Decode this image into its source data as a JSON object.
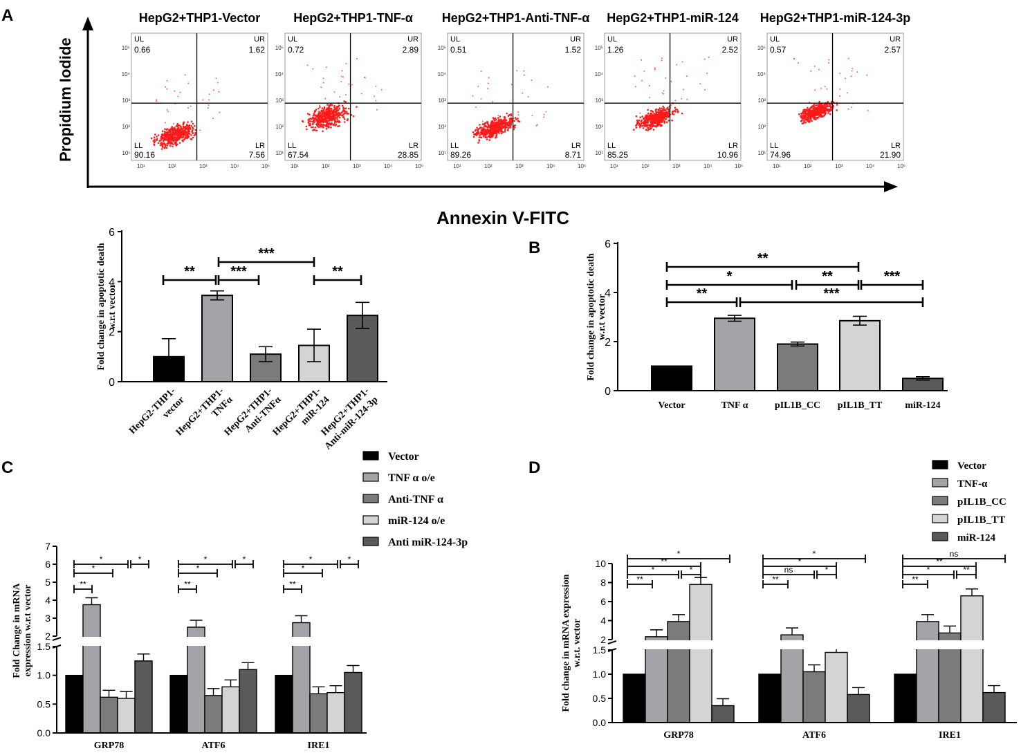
{
  "panel_labels": {
    "a": "A",
    "b": "B",
    "c": "C",
    "d": "D"
  },
  "colors": {
    "black": "#000000",
    "gray1": "#a3a3a8",
    "gray2": "#7b7b7b",
    "light": "#d4d4d4",
    "dark": "#5a5a5a",
    "dot": "#ff1a1a"
  },
  "panelA": {
    "y_axis_title": "Propidium Iodide",
    "x_axis_title": "Annexin V-FITC",
    "plots": [
      {
        "title": "HepG2+THP1-Vector",
        "UL": "0.66",
        "UR": "1.62",
        "LL": "90.16",
        "LR": "7.56"
      },
      {
        "title": "HepG2+THP1-TNF-α",
        "UL": "0.72",
        "UR": "2.89",
        "LL": "67.54",
        "LR": "28.85"
      },
      {
        "title": "HepG2+THP1-Anti-TNF-α",
        "UL": "0.51",
        "UR": "1.52",
        "LL": "89.26",
        "LR": "8.71"
      },
      {
        "title": "HepG2+THP1-miR-124",
        "UL": "1.26",
        "UR": "2.52",
        "LL": "85.25",
        "LR": "10.96"
      },
      {
        "title": "HepG2+THP1-miR-124-3p",
        "UL": "0.57",
        "UR": "2.57",
        "LL": "74.96",
        "LR": "21.90"
      }
    ],
    "quad_names": {
      "ul": "UL",
      "ur": "UR",
      "ll": "LL",
      "lr": "LR"
    },
    "tick_labels": [
      "10¹",
      "10²",
      "10³",
      "10⁴",
      "10⁵"
    ]
  },
  "chart_data": [
    {
      "type": "bar",
      "title": "",
      "ylabel": "Fold change in apoptotic death w.r.t vector",
      "ylabel_lines": [
        "Fold change in apoptotic death",
        "w.r.t vector"
      ],
      "ylim": [
        0,
        6
      ],
      "yticks": [
        "0",
        "2",
        "4",
        "6"
      ],
      "categories": [
        "HepG2-THP1-vector",
        "HepG2+THP1-TNFα",
        "HepG2+THP1-Anti-TNFα",
        "HepG2+THP1-miR-124",
        "HepG2+THP1-Anti-miR-124-3p"
      ],
      "category_lines": [
        [
          "HepG2-THP1-",
          "vector"
        ],
        [
          "HepG2+THP1-",
          "TNFα"
        ],
        [
          "HepG2+THP1-",
          "Anti-TNFα"
        ],
        [
          "HepG2+THP1-",
          "miR-124"
        ],
        [
          "HepG2+THP1-",
          "Anti-miR-124-3p"
        ]
      ],
      "values": [
        1.0,
        3.45,
        1.1,
        1.45,
        2.65
      ],
      "errors": [
        0.72,
        0.18,
        0.3,
        0.65,
        0.52
      ],
      "significance": [
        "**",
        "***",
        "***",
        "**"
      ]
    },
    {
      "type": "bar",
      "title": "",
      "ylabel": "Fold change in apoptotic death w.r.t vector",
      "ylabel_lines": [
        "Fold change in apoptotic death",
        "w.r.t vector"
      ],
      "ylim": [
        0,
        6
      ],
      "yticks": [
        "0",
        "2",
        "4",
        "6"
      ],
      "categories": [
        "Vector",
        "TNF α",
        "pIL1B_CC",
        "pIL1B_TT",
        "miR-124"
      ],
      "values": [
        1.0,
        2.95,
        1.9,
        2.85,
        0.5
      ],
      "errors": [
        0.0,
        0.12,
        0.08,
        0.18,
        0.07
      ],
      "significance": [
        "**",
        "*",
        "**",
        "***",
        "**",
        "***"
      ]
    },
    {
      "type": "bar",
      "title": "",
      "ylabel": "Fold Change in mRNA expression w.r.t vector",
      "ylabel_lines": [
        "Fold Change in mRNA",
        "expression w.r.t vector"
      ],
      "y_break": [
        1.5,
        2
      ],
      "yticks_low": [
        "0.0",
        "0.5",
        "1.0",
        "1.5"
      ],
      "yticks_high": [
        "2",
        "3",
        "4",
        "5",
        "6",
        "7"
      ],
      "categories": [
        "GRP78",
        "ATF6",
        "IRE1"
      ],
      "series": [
        {
          "name": "Vector",
          "values": [
            1.0,
            1.0,
            1.0
          ]
        },
        {
          "name": "TNF α o/e",
          "values": [
            3.75,
            2.5,
            2.75
          ]
        },
        {
          "name": "Anti-TNF α",
          "values": [
            0.62,
            0.65,
            0.68
          ]
        },
        {
          "name": "miR-124 o/e",
          "values": [
            0.6,
            0.8,
            0.7
          ]
        },
        {
          "name": "Anti miR-124-3p",
          "values": [
            1.25,
            1.1,
            1.05
          ]
        }
      ],
      "significance": {
        "GRP78": [
          "**",
          "*",
          "*",
          "*"
        ],
        "ATF6": [
          "**",
          "*",
          "*",
          "*"
        ],
        "IRE1": [
          "**",
          "*",
          "*",
          "*"
        ]
      }
    },
    {
      "type": "bar",
      "title": "",
      "ylabel": "Fold change in mRNA expression w.r.t. vector",
      "ylabel_lines": [
        "Fold change in mRNA expression",
        "w.r.t. vector"
      ],
      "y_break": [
        1.5,
        2
      ],
      "yticks_low": [
        "0.0",
        "0.5",
        "1.0",
        "1.5"
      ],
      "yticks_high": [
        "2",
        "4",
        "6",
        "8",
        "10"
      ],
      "categories": [
        "GRP78",
        "ATF6",
        "IRE1"
      ],
      "series": [
        {
          "name": "Vector",
          "values": [
            1.0,
            1.0,
            1.0
          ]
        },
        {
          "name": "TNF-α",
          "values": [
            2.3,
            2.5,
            3.9
          ]
        },
        {
          "name": "pIL1B_CC",
          "values": [
            3.9,
            1.05,
            2.7
          ]
        },
        {
          "name": "pIL1B_TT",
          "values": [
            7.8,
            1.45,
            6.6
          ]
        },
        {
          "name": "miR-124",
          "values": [
            0.35,
            0.58,
            0.62
          ]
        }
      ],
      "significance": {
        "GRP78": [
          "**",
          "*",
          "**",
          "*",
          "*"
        ],
        "ATF6": [
          "**",
          "ns",
          "*",
          "*",
          "*"
        ],
        "IRE1": [
          "**",
          "*",
          "**",
          "**",
          "ns"
        ]
      }
    }
  ]
}
